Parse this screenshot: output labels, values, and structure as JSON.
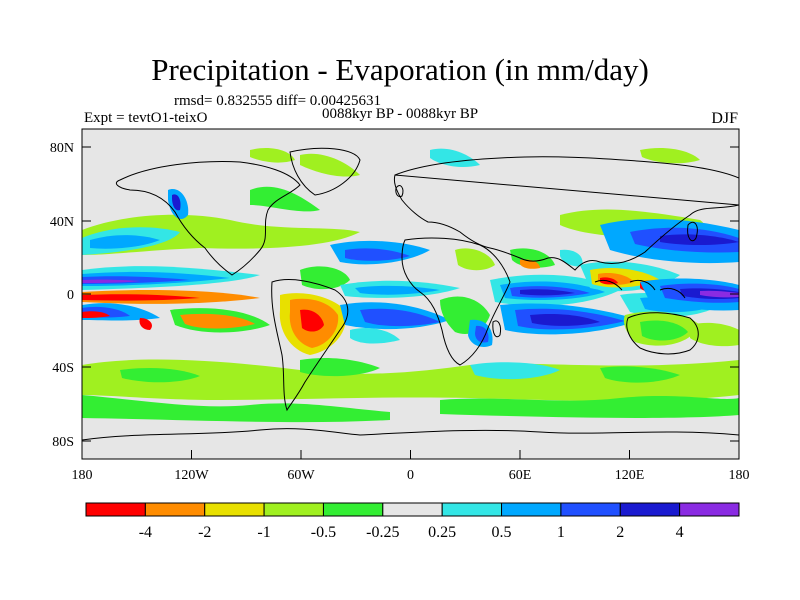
{
  "title": "Precipitation - Evaporation (in mm/day)",
  "stats": "rmsd= 0.832555  diff= 0.00425631",
  "experiment": "Expt = tevtO1-teixO",
  "period": "0088kyr BP - 0088kyr BP",
  "season": "DJF",
  "lat_ticks": [
    "80N",
    "40N",
    "0",
    "40S",
    "80S"
  ],
  "lon_ticks": [
    "180",
    "120W",
    "60W",
    "0",
    "60E",
    "120E",
    "180"
  ],
  "colorbar": {
    "labels": [
      "-4",
      "-2",
      "-1",
      "-0.5",
      "-0.25",
      "0.25",
      "0.5",
      "1",
      "2",
      "4"
    ],
    "colors": [
      "#ff0000",
      "#ff8c00",
      "#e8e000",
      "#a0f020",
      "#33ee33",
      "#e6e6e6",
      "#33e6e6",
      "#00a8ff",
      "#2050ff",
      "#1a1ad0",
      "#8a2be2"
    ]
  }
}
